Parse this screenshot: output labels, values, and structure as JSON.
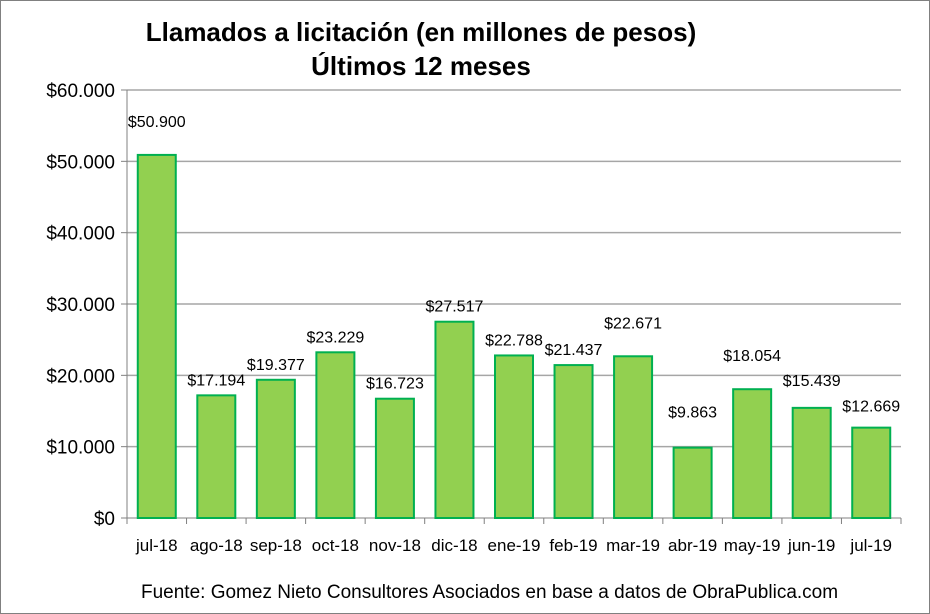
{
  "chart_data": {
    "type": "bar",
    "title": "Llamados a licitación (en millones de pesos)",
    "subtitle": "Últimos 12 meses",
    "categories": [
      "jul-18",
      "ago-18",
      "sep-18",
      "oct-18",
      "nov-18",
      "dic-18",
      "ene-19",
      "feb-19",
      "mar-19",
      "abr-19",
      "may-19",
      "jun-19",
      "jul-19"
    ],
    "values": [
      50900,
      17194,
      19377,
      23229,
      16723,
      27517,
      22788,
      21437,
      22671,
      9863,
      18054,
      15439,
      12669
    ],
    "data_labels": [
      "$50.900",
      "$17.194",
      "$19.377",
      "$23.229",
      "$16.723",
      "$27.517",
      "$22.788",
      "$21.437",
      "$22.671",
      "$9.863",
      "$18.054",
      "$15.439",
      "$12.669"
    ],
    "y_ticks": [
      0,
      10000,
      20000,
      30000,
      40000,
      50000,
      60000
    ],
    "y_tick_labels": [
      "$0",
      "$10.000",
      "$20.000",
      "$30.000",
      "$40.000",
      "$50.000",
      "$60.000"
    ],
    "ylim": [
      0,
      60000
    ],
    "xlabel": "",
    "ylabel": "",
    "grid": true,
    "legend": "none",
    "colors": {
      "bar_fill": "#92D050",
      "bar_stroke": "#00B050",
      "grid": "#A6A6A6"
    }
  },
  "footer": {
    "source": "Fuente: Gomez Nieto Consultores Asociados en base a datos de ObraPublica.com"
  }
}
